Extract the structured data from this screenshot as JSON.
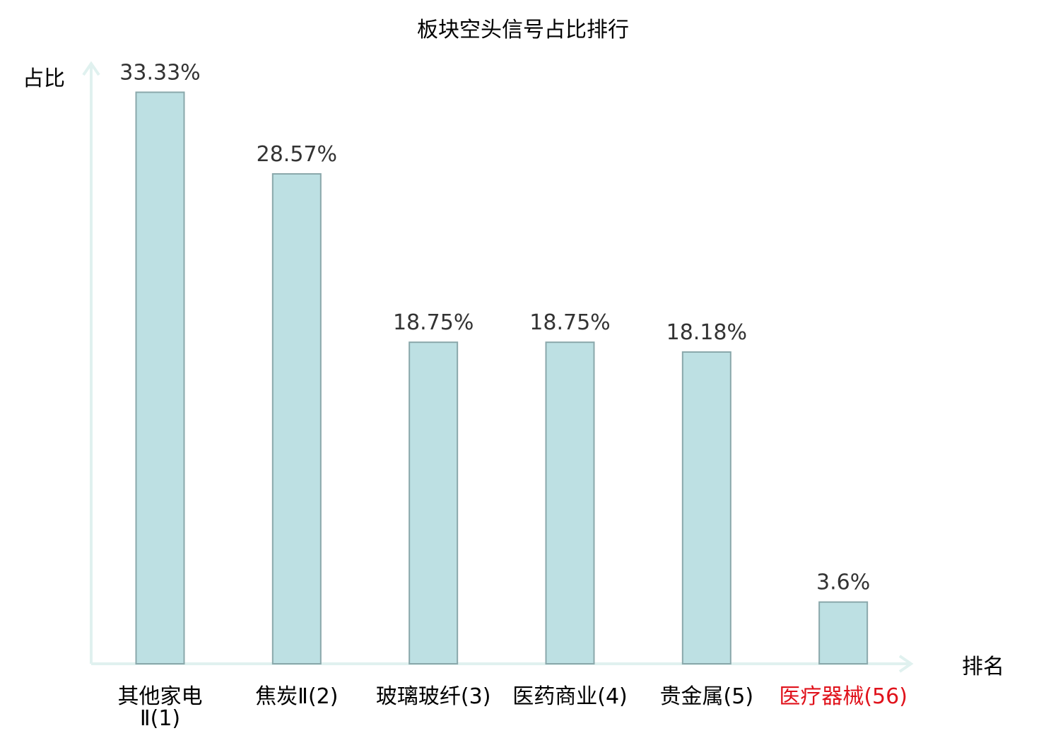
{
  "chart_data": {
    "type": "bar",
    "title": "板块空头信号占比排行",
    "ylabel": "占比",
    "xlabel": "排名",
    "categories": [
      "其他家电Ⅱ(1)",
      "焦炭Ⅱ(2)",
      "玻璃玻纤(3)",
      "医药商业(4)",
      "贵金属(5)",
      "医疗器械(56)"
    ],
    "category_name_parts": [
      {
        "name": "其他家电",
        "suffix": "Ⅱ(1)"
      },
      {
        "name": "焦炭",
        "suffix": "Ⅱ(2)"
      },
      {
        "name": "玻璃玻纤",
        "suffix": "(3)"
      },
      {
        "name": "医药商业",
        "suffix": "(4)"
      },
      {
        "name": "贵金属",
        "suffix": "(5)"
      },
      {
        "name": "医疗器械",
        "suffix": "(56)"
      }
    ],
    "values": [
      33.33,
      28.57,
      18.75,
      18.75,
      18.18,
      3.6
    ],
    "value_labels": [
      "33.33%",
      "28.57%",
      "18.75%",
      "18.75%",
      "18.18%",
      "3.6%"
    ],
    "ylim": [
      0,
      35
    ],
    "grid": false,
    "colors": {
      "bar_fill": "#bde0e3",
      "bar_stroke": "#8aa8ab",
      "axis": "#e0f1ef",
      "text": "#333333",
      "label": "#000000",
      "highlight": "#e0121b"
    },
    "highlight_index": 5
  }
}
